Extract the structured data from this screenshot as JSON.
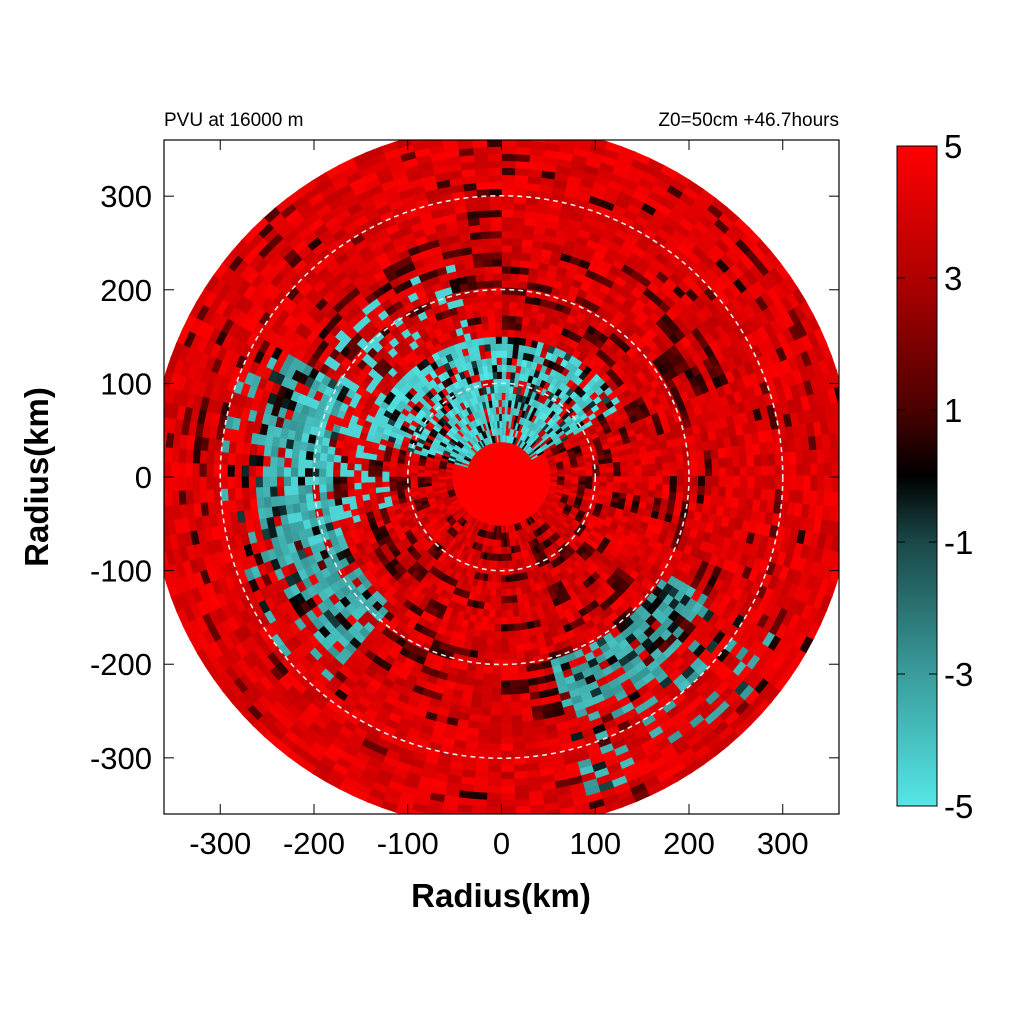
{
  "chart_data": {
    "type": "heatmap",
    "title_left": "PVU at 16000 m",
    "title_right": "Z0=50cm  +46.7hours",
    "xlabel": "Radius(km)",
    "ylabel": "Radius(km)",
    "xlim": [
      -360,
      360
    ],
    "ylim": [
      -360,
      360
    ],
    "x_ticks": [
      -300,
      -200,
      -100,
      0,
      100,
      200,
      300
    ],
    "y_ticks": [
      300,
      200,
      100,
      0,
      -100,
      -200,
      -300
    ],
    "grid": false,
    "domain_radius_km": 375,
    "reference_circles_km": [
      100,
      200,
      300
    ],
    "colorbar": {
      "range": [
        -5,
        5
      ],
      "ticks": [
        5,
        3,
        1,
        -1,
        -3,
        -5
      ],
      "stops": [
        {
          "value": -5,
          "color": "#55e6e6"
        },
        {
          "value": -3,
          "color": "#3a9c9c"
        },
        {
          "value": -1,
          "color": "#1a4848"
        },
        {
          "value": 0,
          "color": "#000000"
        },
        {
          "value": 1,
          "color": "#4a0000"
        },
        {
          "value": 3,
          "color": "#b00000"
        },
        {
          "value": 5,
          "color": "#ff0000"
        }
      ]
    },
    "field_features": [
      {
        "region": "core",
        "r_km": [
          0,
          55
        ],
        "value": 5
      },
      {
        "region": "inner-north arc",
        "r_km": [
          40,
          150
        ],
        "theta_deg": [
          30,
          165
        ],
        "value": -5
      },
      {
        "region": "western band",
        "r_km": [
          180,
          300
        ],
        "theta_deg": [
          150,
          230
        ],
        "value": -4
      },
      {
        "region": "south-east band",
        "r_km": [
          200,
          350
        ],
        "theta_deg": [
          285,
          330
        ],
        "value": -4
      },
      {
        "region": "outer ring",
        "r_km": [
          260,
          375
        ],
        "value": 4.5
      }
    ]
  }
}
